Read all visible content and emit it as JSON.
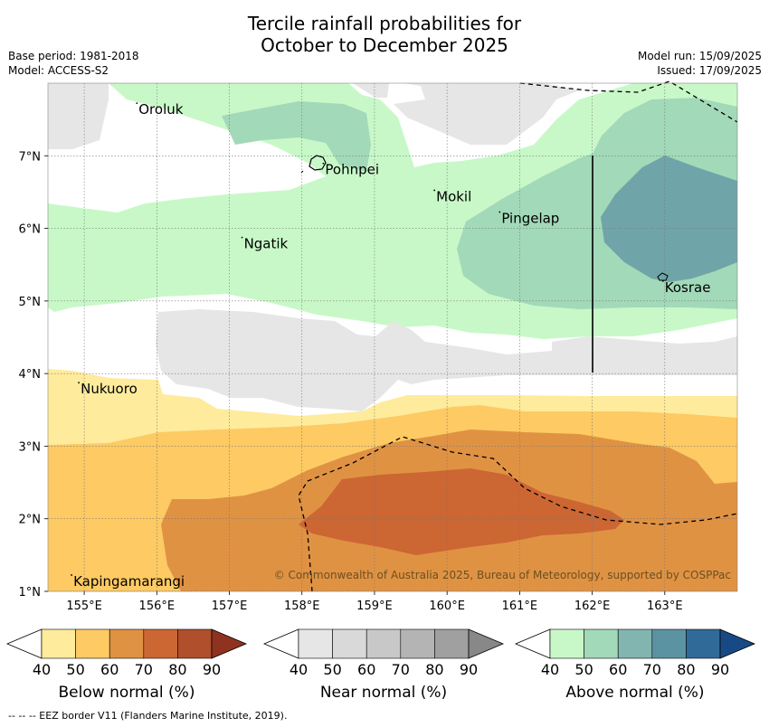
{
  "title_line1": "Tercile rainfall probabilities for",
  "title_line2": "October to December 2025",
  "base_period": "Base period: 1981-2018",
  "model": "Model: ACCESS-S2",
  "model_run": "Model run: 15/09/2025",
  "issued": "Issued: 17/09/2025",
  "copyright": "© Commonwealth of Australia 2025, Bureau of Meteorology, supported by COSPPac",
  "lat_ticks": [
    "1°N",
    "2°N",
    "3°N",
    "4°N",
    "5°N",
    "6°N",
    "7°N"
  ],
  "lon_ticks": [
    "155°E",
    "156°E",
    "157°E",
    "158°E",
    "159°E",
    "160°E",
    "161°E",
    "162°E",
    "163°E"
  ],
  "places": [
    {
      "name": "Oroluk",
      "lon": 155.75,
      "lat": 7.65
    },
    {
      "name": "Pohnpei",
      "lon": 158.32,
      "lat": 6.82
    },
    {
      "name": "Mokil",
      "lon": 159.85,
      "lat": 6.45
    },
    {
      "name": "Pingelap",
      "lon": 160.75,
      "lat": 6.15
    },
    {
      "name": "Ngatik",
      "lon": 157.2,
      "lat": 5.8
    },
    {
      "name": "Kosrae",
      "lon": 163.0,
      "lat": 5.2
    },
    {
      "name": "Nukuoro",
      "lon": 154.95,
      "lat": 3.8
    },
    {
      "name": "Kapingamarangi",
      "lon": 154.85,
      "lat": 1.15
    }
  ],
  "legends": [
    {
      "label": "Below normal (%)",
      "colors": [
        "#ffeb9c",
        "#fdca63",
        "#e09243",
        "#cc6633",
        "#b04f2b",
        "#8f3320"
      ],
      "ticks": [
        "40",
        "50",
        "60",
        "70",
        "80",
        "90"
      ]
    },
    {
      "label": "Near normal (%)",
      "colors": [
        "#e6e6e6",
        "#d9d9d9",
        "#c8c8c8",
        "#b4b4b4",
        "#a0a0a0",
        "#888888"
      ],
      "ticks": [
        "40",
        "50",
        "60",
        "70",
        "80",
        "90"
      ]
    },
    {
      "label": "Above normal (%)",
      "colors": [
        "#c8f8c8",
        "#a2d9b9",
        "#82b5b0",
        "#5b93a2",
        "#306a98",
        "#174a85"
      ],
      "ticks": [
        "40",
        "50",
        "60",
        "70",
        "80",
        "90"
      ]
    }
  ],
  "footer": "--  --  -- EEZ border V11 (Flanders Marine Institute, 2019)."
}
